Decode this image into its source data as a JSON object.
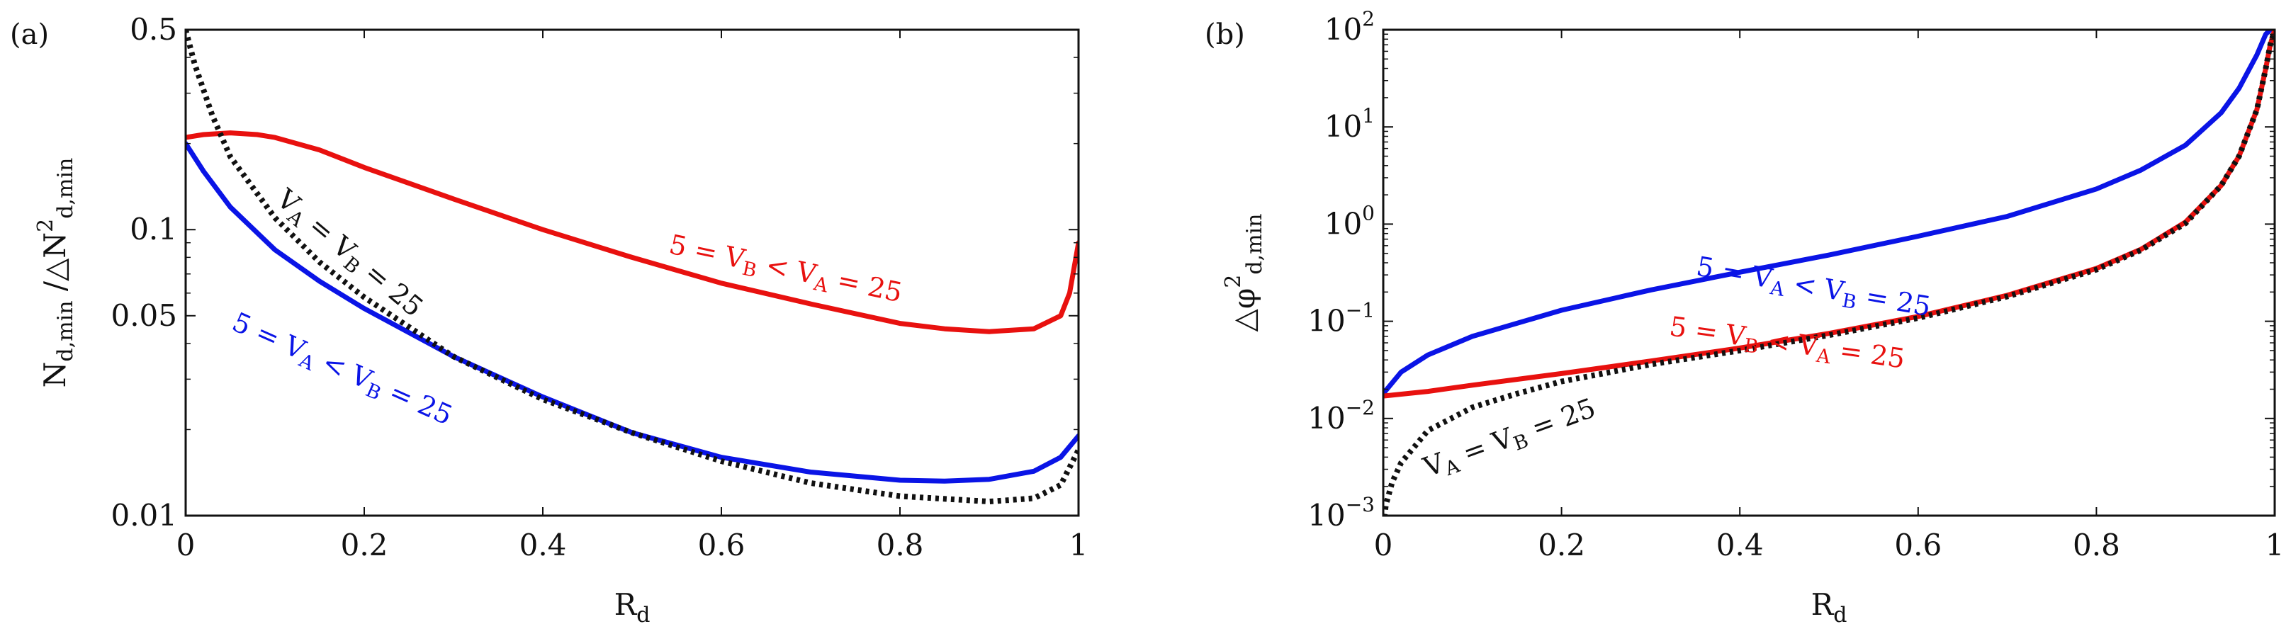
{
  "chart_data": [
    {
      "panel": "a",
      "panel_label": "(a)",
      "type": "line",
      "xscale": "linear",
      "yscale": "log",
      "xlim": [
        0,
        1
      ],
      "ylim": [
        0.01,
        0.5
      ],
      "xticks": [
        0,
        0.2,
        0.4,
        0.6,
        0.8,
        1
      ],
      "xtick_labels": [
        "0",
        "0.2",
        "0.4",
        "0.6",
        "0.8",
        "1"
      ],
      "yticks": [
        0.01,
        0.05,
        0.1,
        0.5
      ],
      "ytick_labels": [
        "0.01",
        "0.05",
        "0.1",
        "0.5"
      ],
      "xlabel": {
        "main": "R",
        "sub": "d"
      },
      "ylabel": {
        "p1": "N",
        "p1sub": "d,min",
        "p2": " /△N",
        "p2sup": "2",
        "p2sub": "d,min"
      },
      "series": [
        {
          "name": "red",
          "color": "#e8110f",
          "style": "solid",
          "x": [
            0,
            0.02,
            0.05,
            0.08,
            0.1,
            0.15,
            0.2,
            0.3,
            0.4,
            0.5,
            0.6,
            0.7,
            0.8,
            0.85,
            0.9,
            0.95,
            0.98,
            0.99,
            1.0
          ],
          "y": [
            0.21,
            0.215,
            0.218,
            0.215,
            0.21,
            0.19,
            0.165,
            0.128,
            0.1,
            0.08,
            0.065,
            0.055,
            0.047,
            0.045,
            0.044,
            0.045,
            0.05,
            0.06,
            0.09
          ]
        },
        {
          "name": "blue",
          "color": "#0a14e6",
          "style": "solid",
          "x": [
            0,
            0.02,
            0.05,
            0.1,
            0.15,
            0.2,
            0.3,
            0.4,
            0.5,
            0.6,
            0.7,
            0.8,
            0.85,
            0.9,
            0.95,
            0.98,
            1.0
          ],
          "y": [
            0.2,
            0.16,
            0.12,
            0.085,
            0.066,
            0.053,
            0.036,
            0.026,
            0.0195,
            0.016,
            0.0142,
            0.0133,
            0.0132,
            0.0134,
            0.0143,
            0.016,
            0.019
          ]
        },
        {
          "name": "black-dotted",
          "color": "#111111",
          "style": "dotted",
          "x": [
            0,
            0.01,
            0.03,
            0.05,
            0.1,
            0.15,
            0.2,
            0.3,
            0.4,
            0.5,
            0.6,
            0.7,
            0.8,
            0.9,
            0.95,
            0.98,
            1.0
          ],
          "y": [
            0.5,
            0.38,
            0.25,
            0.18,
            0.11,
            0.077,
            0.058,
            0.036,
            0.0255,
            0.0195,
            0.0155,
            0.013,
            0.0117,
            0.0112,
            0.0115,
            0.0128,
            0.017
          ]
        }
      ],
      "annotations": [
        {
          "series": "black-dotted",
          "color": "#111111",
          "rotation": 40,
          "x": 0.1,
          "y": 0.125,
          "parts": [
            "V",
            "A",
            " = V",
            "B",
            " = 25"
          ]
        },
        {
          "series": "red",
          "color": "#e8110f",
          "rotation": 12,
          "x": 0.54,
          "y": 0.083,
          "parts": [
            "5 = V",
            "B",
            " < V",
            "A",
            " = 25"
          ]
        },
        {
          "series": "blue",
          "color": "#0a14e6",
          "rotation": 24,
          "x": 0.05,
          "y": 0.045,
          "parts": [
            "5 = V",
            "A",
            " < V",
            "B",
            " = 25"
          ]
        }
      ]
    },
    {
      "panel": "b",
      "panel_label": "(b)",
      "type": "line",
      "xscale": "linear",
      "yscale": "log",
      "xlim": [
        0,
        1
      ],
      "ylim": [
        0.001,
        100
      ],
      "xticks": [
        0,
        0.2,
        0.4,
        0.6,
        0.8,
        1
      ],
      "xtick_labels": [
        "0",
        "0.2",
        "0.4",
        "0.6",
        "0.8",
        "1"
      ],
      "yticks": [
        0.001,
        0.01,
        0.1,
        1,
        10,
        100
      ],
      "ytick_base": "10",
      "ytick_exponents": [
        "−3",
        "−2",
        "−1",
        "0",
        "1",
        "2"
      ],
      "xlabel": {
        "main": "R",
        "sub": "d"
      },
      "ylabel": {
        "p1": "△φ",
        "sup": "2",
        "sub": "d,min"
      },
      "series": [
        {
          "name": "blue",
          "color": "#0a14e6",
          "style": "solid",
          "x": [
            0,
            0.02,
            0.05,
            0.1,
            0.2,
            0.3,
            0.4,
            0.5,
            0.6,
            0.7,
            0.8,
            0.85,
            0.9,
            0.94,
            0.96,
            0.98,
            0.99,
            0.995
          ],
          "y": [
            0.018,
            0.03,
            0.045,
            0.07,
            0.13,
            0.21,
            0.32,
            0.48,
            0.75,
            1.2,
            2.3,
            3.6,
            6.5,
            14,
            25,
            55,
            90,
            100
          ]
        },
        {
          "name": "red",
          "color": "#e8110f",
          "style": "solid",
          "x": [
            0,
            0.05,
            0.1,
            0.2,
            0.3,
            0.4,
            0.5,
            0.6,
            0.7,
            0.8,
            0.85,
            0.9,
            0.94,
            0.96,
            0.98,
            0.99,
            0.995,
            1.0
          ],
          "y": [
            0.017,
            0.019,
            0.022,
            0.029,
            0.039,
            0.053,
            0.075,
            0.112,
            0.185,
            0.35,
            0.55,
            1.05,
            2.5,
            5,
            15,
            40,
            70,
            100
          ]
        },
        {
          "name": "black-dotted",
          "color": "#111111",
          "style": "dotted",
          "x": [
            0,
            0.003,
            0.01,
            0.02,
            0.05,
            0.1,
            0.15,
            0.2,
            0.3,
            0.4,
            0.5,
            0.6,
            0.7,
            0.8,
            0.85,
            0.9,
            0.94,
            0.96,
            0.98,
            0.99,
            0.995,
            1.0
          ],
          "y": [
            0.0008,
            0.0013,
            0.0022,
            0.0035,
            0.0075,
            0.013,
            0.018,
            0.024,
            0.036,
            0.05,
            0.072,
            0.108,
            0.18,
            0.34,
            0.54,
            1.02,
            2.5,
            5,
            15,
            40,
            70,
            100
          ]
        }
      ],
      "annotations": [
        {
          "series": "blue",
          "color": "#0a14e6",
          "rotation": 10,
          "x": 0.35,
          "y": 0.3,
          "parts": [
            "5 = V",
            "A",
            " < V",
            "B",
            " = 25"
          ]
        },
        {
          "series": "red",
          "color": "#e8110f",
          "rotation": 8,
          "x": 0.32,
          "y": 0.072,
          "parts": [
            "5 = V",
            "B",
            " < V",
            "A",
            " = 25"
          ]
        },
        {
          "series": "black-dotted",
          "color": "#111111",
          "rotation": -20,
          "x": 0.05,
          "y": 0.0025,
          "parts": [
            "V",
            "A",
            " = V",
            "B",
            " = 25"
          ]
        }
      ]
    }
  ]
}
